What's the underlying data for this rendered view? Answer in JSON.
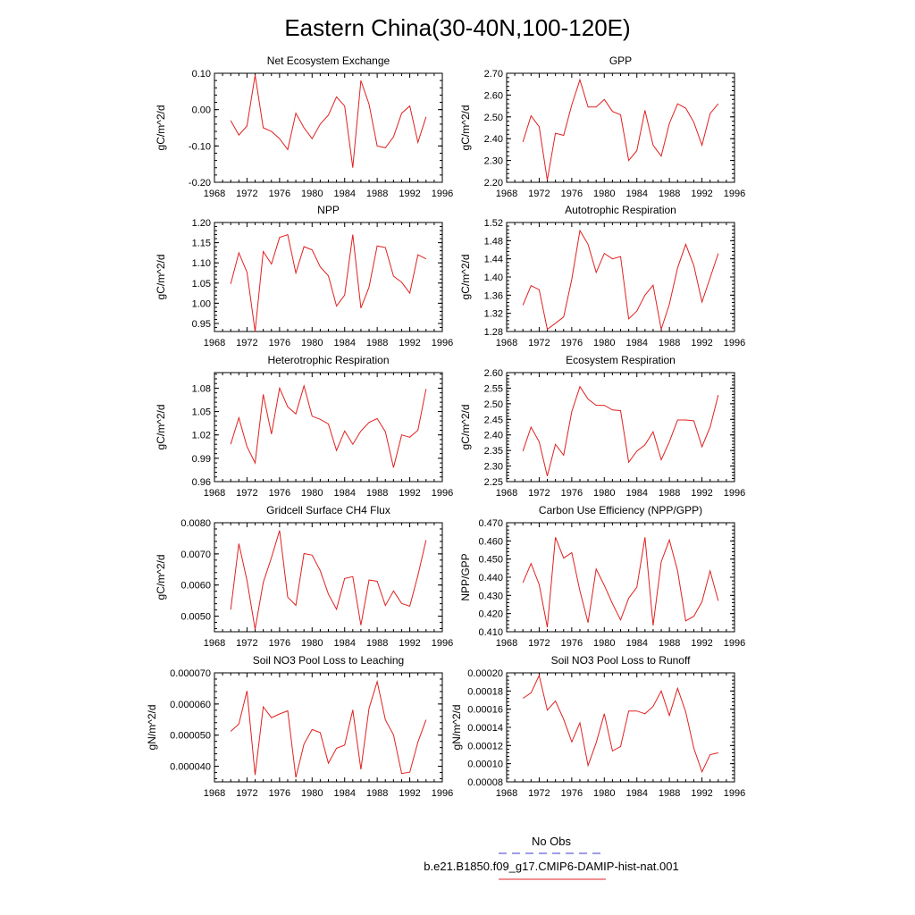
{
  "figure": {
    "title": "Eastern China(30-40N,100-120E)",
    "legend": [
      {
        "label": "No Obs",
        "color": "#3b3bd6",
        "style": "dashed"
      },
      {
        "label": "b.e21.B1850.f09_g17.CMIP6-DAMIP-hist-nat.001",
        "color": "#e02020",
        "style": "solid"
      }
    ]
  },
  "chart_data": [
    {
      "type": "line",
      "title": "Net Ecosystem Exchange",
      "xlabel": "",
      "ylabel": "gC/m^2/d",
      "xlim": [
        1968,
        1996
      ],
      "ylim": [
        -0.2,
        0.1
      ],
      "xticks": [
        1968,
        1972,
        1976,
        1980,
        1984,
        1988,
        1992,
        1996
      ],
      "yticks": [
        -0.2,
        -0.1,
        0.0,
        0.1
      ],
      "ytick_labels": [
        "-0.20",
        "-0.10",
        "0.00",
        "0.10"
      ],
      "grid": false,
      "series": [
        {
          "color": "#e02020",
          "x": [
            1970,
            1971,
            1972,
            1973,
            1974,
            1975,
            1976,
            1977,
            1978,
            1979,
            1980,
            1981,
            1982,
            1983,
            1984,
            1985,
            1986,
            1987,
            1988,
            1989,
            1990,
            1991,
            1992,
            1993,
            1994
          ],
          "values": [
            -0.03,
            -0.07,
            -0.045,
            0.095,
            -0.05,
            -0.06,
            -0.08,
            -0.11,
            -0.01,
            -0.05,
            -0.08,
            -0.04,
            -0.015,
            0.035,
            0.01,
            -0.16,
            0.08,
            0.015,
            -0.1,
            -0.105,
            -0.075,
            -0.01,
            0.01,
            -0.09,
            -0.02
          ]
        }
      ]
    },
    {
      "type": "line",
      "title": "GPP",
      "xlabel": "",
      "ylabel": "gC/m^2/d",
      "xlim": [
        1968,
        1996
      ],
      "ylim": [
        2.2,
        2.7
      ],
      "xticks": [
        1968,
        1972,
        1976,
        1980,
        1984,
        1988,
        1992,
        1996
      ],
      "yticks": [
        2.2,
        2.3,
        2.4,
        2.5,
        2.6,
        2.7
      ],
      "ytick_labels": [
        "2.20",
        "2.30",
        "2.40",
        "2.50",
        "2.60",
        "2.70"
      ],
      "grid": false,
      "series": [
        {
          "color": "#e02020",
          "x": [
            1970,
            1971,
            1972,
            1973,
            1974,
            1975,
            1976,
            1977,
            1978,
            1979,
            1980,
            1981,
            1982,
            1983,
            1984,
            1985,
            1986,
            1987,
            1988,
            1989,
            1990,
            1991,
            1992,
            1993,
            1994
          ],
          "values": [
            2.385,
            2.505,
            2.455,
            2.21,
            2.425,
            2.415,
            2.555,
            2.67,
            2.545,
            2.545,
            2.58,
            2.525,
            2.51,
            2.3,
            2.345,
            2.53,
            2.37,
            2.32,
            2.47,
            2.56,
            2.54,
            2.475,
            2.37,
            2.515,
            2.56
          ]
        }
      ]
    },
    {
      "type": "line",
      "title": "NPP",
      "xlabel": "",
      "ylabel": "gC/m^2/d",
      "xlim": [
        1968,
        1996
      ],
      "ylim": [
        0.93,
        1.2
      ],
      "xticks": [
        1968,
        1972,
        1976,
        1980,
        1984,
        1988,
        1992,
        1996
      ],
      "yticks": [
        0.95,
        1.0,
        1.05,
        1.1,
        1.15,
        1.2
      ],
      "ytick_labels": [
        "0.95",
        "1.00",
        "1.05",
        "1.10",
        "1.15",
        "1.20"
      ],
      "grid": false,
      "series": [
        {
          "color": "#e02020",
          "x": [
            1970,
            1971,
            1972,
            1973,
            1974,
            1975,
            1976,
            1977,
            1978,
            1979,
            1980,
            1981,
            1982,
            1983,
            1984,
            1985,
            1986,
            1987,
            1988,
            1989,
            1990,
            1991,
            1992,
            1993,
            1994
          ],
          "values": [
            1.048,
            1.125,
            1.077,
            0.93,
            1.128,
            1.097,
            1.163,
            1.17,
            1.075,
            1.14,
            1.132,
            1.09,
            1.068,
            0.993,
            1.02,
            1.17,
            0.988,
            1.04,
            1.142,
            1.138,
            1.067,
            1.052,
            1.025,
            1.12,
            1.11
          ]
        }
      ]
    },
    {
      "type": "line",
      "title": "Autotrophic Respiration",
      "xlabel": "",
      "ylabel": "gC/m^2/d",
      "xlim": [
        1968,
        1996
      ],
      "ylim": [
        1.28,
        1.52
      ],
      "xticks": [
        1968,
        1972,
        1976,
        1980,
        1984,
        1988,
        1992,
        1996
      ],
      "yticks": [
        1.28,
        1.32,
        1.36,
        1.4,
        1.44,
        1.48,
        1.52
      ],
      "ytick_labels": [
        "1.28",
        "1.32",
        "1.36",
        "1.40",
        "1.44",
        "1.48",
        "1.52"
      ],
      "grid": false,
      "series": [
        {
          "color": "#e02020",
          "x": [
            1970,
            1971,
            1972,
            1973,
            1974,
            1975,
            1976,
            1977,
            1978,
            1979,
            1980,
            1981,
            1982,
            1983,
            1984,
            1985,
            1986,
            1987,
            1988,
            1989,
            1990,
            1991,
            1992,
            1993,
            1994
          ],
          "values": [
            1.338,
            1.381,
            1.372,
            1.285,
            1.298,
            1.312,
            1.395,
            1.502,
            1.472,
            1.41,
            1.452,
            1.44,
            1.445,
            1.308,
            1.325,
            1.36,
            1.382,
            1.285,
            1.34,
            1.42,
            1.472,
            1.425,
            1.345,
            1.398,
            1.452
          ]
        }
      ]
    },
    {
      "type": "line",
      "title": "Heterotrophic Respiration",
      "xlabel": "",
      "ylabel": "gC/m^2/d",
      "xlim": [
        1968,
        1996
      ],
      "ylim": [
        0.96,
        1.1
      ],
      "xticks": [
        1968,
        1972,
        1976,
        1980,
        1984,
        1988,
        1992,
        1996
      ],
      "yticks": [
        0.96,
        0.99,
        1.02,
        1.05,
        1.08
      ],
      "ytick_labels": [
        "0.96",
        "0.99",
        "1.02",
        "1.05",
        "1.08"
      ],
      "grid": false,
      "series": [
        {
          "color": "#e02020",
          "x": [
            1970,
            1971,
            1972,
            1973,
            1974,
            1975,
            1976,
            1977,
            1978,
            1979,
            1980,
            1981,
            1982,
            1983,
            1984,
            1985,
            1986,
            1987,
            1988,
            1989,
            1990,
            1991,
            1992,
            1993,
            1994
          ],
          "values": [
            1.008,
            1.042,
            1.005,
            0.984,
            1.072,
            1.021,
            1.08,
            1.056,
            1.047,
            1.083,
            1.044,
            1.04,
            1.034,
            1.0,
            1.025,
            1.008,
            1.025,
            1.036,
            1.041,
            1.024,
            0.978,
            1.02,
            1.017,
            1.026,
            1.079
          ]
        }
      ]
    },
    {
      "type": "line",
      "title": "Ecosystem Respiration",
      "xlabel": "",
      "ylabel": "gC/m^2/d",
      "xlim": [
        1968,
        1996
      ],
      "ylim": [
        2.25,
        2.6
      ],
      "xticks": [
        1968,
        1972,
        1976,
        1980,
        1984,
        1988,
        1992,
        1996
      ],
      "yticks": [
        2.25,
        2.3,
        2.35,
        2.4,
        2.45,
        2.5,
        2.55,
        2.6
      ],
      "ytick_labels": [
        "2.25",
        "2.30",
        "2.35",
        "2.40",
        "2.45",
        "2.50",
        "2.55",
        "2.60"
      ],
      "grid": false,
      "series": [
        {
          "color": "#e02020",
          "x": [
            1970,
            1971,
            1972,
            1973,
            1974,
            1975,
            1976,
            1977,
            1978,
            1979,
            1980,
            1981,
            1982,
            1983,
            1984,
            1985,
            1986,
            1987,
            1988,
            1989,
            1990,
            1991,
            1992,
            1993,
            1994
          ],
          "values": [
            2.348,
            2.425,
            2.378,
            2.268,
            2.37,
            2.335,
            2.475,
            2.555,
            2.515,
            2.495,
            2.495,
            2.48,
            2.478,
            2.312,
            2.348,
            2.368,
            2.41,
            2.32,
            2.378,
            2.448,
            2.448,
            2.445,
            2.362,
            2.425,
            2.528
          ]
        }
      ]
    },
    {
      "type": "line",
      "title": "Gridcell Surface CH4 Flux",
      "xlabel": "",
      "ylabel": "gC/m^2/d",
      "xlim": [
        1968,
        1996
      ],
      "ylim": [
        0.0045,
        0.008
      ],
      "xticks": [
        1968,
        1972,
        1976,
        1980,
        1984,
        1988,
        1992,
        1996
      ],
      "yticks": [
        0.005,
        0.006,
        0.007,
        0.008
      ],
      "ytick_labels": [
        "0.0050",
        "0.0060",
        "0.0070",
        "0.0080"
      ],
      "grid": false,
      "series": [
        {
          "color": "#e02020",
          "x": [
            1970,
            1971,
            1972,
            1973,
            1974,
            1975,
            1976,
            1977,
            1978,
            1979,
            1980,
            1981,
            1982,
            1983,
            1984,
            1985,
            1986,
            1987,
            1988,
            1989,
            1990,
            1991,
            1992,
            1993,
            1994
          ],
          "values": [
            0.00521,
            0.00733,
            0.00615,
            0.00458,
            0.00608,
            0.00688,
            0.00775,
            0.00561,
            0.00535,
            0.00701,
            0.00696,
            0.00646,
            0.00571,
            0.00522,
            0.00621,
            0.00627,
            0.00471,
            0.00616,
            0.00612,
            0.00534,
            0.00581,
            0.00541,
            0.00532,
            0.00631,
            0.00744
          ]
        }
      ]
    },
    {
      "type": "line",
      "title": "Carbon Use Efficiency (NPP/GPP)",
      "xlabel": "",
      "ylabel": "NPP/GPP",
      "xlim": [
        1968,
        1996
      ],
      "ylim": [
        0.41,
        0.47
      ],
      "xticks": [
        1968,
        1972,
        1976,
        1980,
        1984,
        1988,
        1992,
        1996
      ],
      "yticks": [
        0.41,
        0.42,
        0.43,
        0.44,
        0.45,
        0.46,
        0.47
      ],
      "ytick_labels": [
        "0.410",
        "0.420",
        "0.430",
        "0.440",
        "0.450",
        "0.460",
        "0.470"
      ],
      "grid": false,
      "series": [
        {
          "color": "#e02020",
          "x": [
            1970,
            1971,
            1972,
            1973,
            1974,
            1975,
            1976,
            1977,
            1978,
            1979,
            1980,
            1981,
            1982,
            1983,
            1984,
            1985,
            1986,
            1987,
            1988,
            1989,
            1990,
            1991,
            1992,
            1993,
            1994
          ],
          "values": [
            0.437,
            0.4475,
            0.436,
            0.4125,
            0.462,
            0.4505,
            0.4535,
            0.4325,
            0.415,
            0.4445,
            0.4355,
            0.4255,
            0.4165,
            0.4285,
            0.4345,
            0.462,
            0.4135,
            0.4485,
            0.4605,
            0.4435,
            0.416,
            0.4185,
            0.4265,
            0.4435,
            0.427
          ]
        }
      ]
    },
    {
      "type": "line",
      "title": "Soil NO3 Pool Loss to Leaching",
      "xlabel": "",
      "ylabel": "gN/m^2/d",
      "xlim": [
        1968,
        1996
      ],
      "ylim": [
        3.5e-05,
        7e-05
      ],
      "xticks": [
        1968,
        1972,
        1976,
        1980,
        1984,
        1988,
        1992,
        1996
      ],
      "yticks": [
        4e-05,
        5e-05,
        6e-05,
        7e-05
      ],
      "ytick_labels": [
        "0.000040",
        "0.000050",
        "0.000060",
        "0.000070"
      ],
      "grid": false,
      "series": [
        {
          "color": "#e02020",
          "x": [
            1970,
            1971,
            1972,
            1973,
            1974,
            1975,
            1976,
            1977,
            1978,
            1979,
            1980,
            1981,
            1982,
            1983,
            1984,
            1985,
            1986,
            1987,
            1988,
            1989,
            1990,
            1991,
            1992,
            1993,
            1994
          ],
          "values": [
            5.12e-05,
            5.36e-05,
            6.42e-05,
            3.72e-05,
            5.91e-05,
            5.56e-05,
            5.68e-05,
            5.78e-05,
            3.64e-05,
            4.71e-05,
            5.18e-05,
            5.08e-05,
            4.1e-05,
            4.58e-05,
            4.68e-05,
            5.81e-05,
            3.9e-05,
            5.86e-05,
            6.72e-05,
            5.49e-05,
            5.01e-05,
            3.77e-05,
            3.81e-05,
            4.78e-05,
            5.49e-05
          ]
        }
      ]
    },
    {
      "type": "line",
      "title": "Soil NO3 Pool Loss to Runoff",
      "xlabel": "",
      "ylabel": "gN/m^2/d",
      "xlim": [
        1968,
        1996
      ],
      "ylim": [
        8e-05,
        0.0002
      ],
      "xticks": [
        1968,
        1972,
        1976,
        1980,
        1984,
        1988,
        1992,
        1996
      ],
      "yticks": [
        8e-05,
        0.0001,
        0.00012,
        0.00014,
        0.00016,
        0.00018,
        0.0002
      ],
      "ytick_labels": [
        "0.00008",
        "0.00010",
        "0.00012",
        "0.00014",
        "0.00016",
        "0.00018",
        "0.00020"
      ],
      "grid": false,
      "series": [
        {
          "color": "#e02020",
          "x": [
            1970,
            1971,
            1972,
            1973,
            1974,
            1975,
            1976,
            1977,
            1978,
            1979,
            1980,
            1981,
            1982,
            1983,
            1984,
            1985,
            1986,
            1987,
            1988,
            1989,
            1990,
            1991,
            1992,
            1993,
            1994
          ],
          "values": [
            0.000172,
            0.000178,
            0.000197,
            0.000159,
            0.000169,
            0.000149,
            0.000124,
            0.000145,
            9.8e-05,
            0.000123,
            0.000155,
            0.000114,
            0.000119,
            0.000158,
            0.000158,
            0.000155,
            0.000163,
            0.00018,
            0.000153,
            0.000183,
            0.000157,
            0.000117,
            9.1e-05,
            0.00011,
            0.000112
          ]
        }
      ]
    }
  ]
}
